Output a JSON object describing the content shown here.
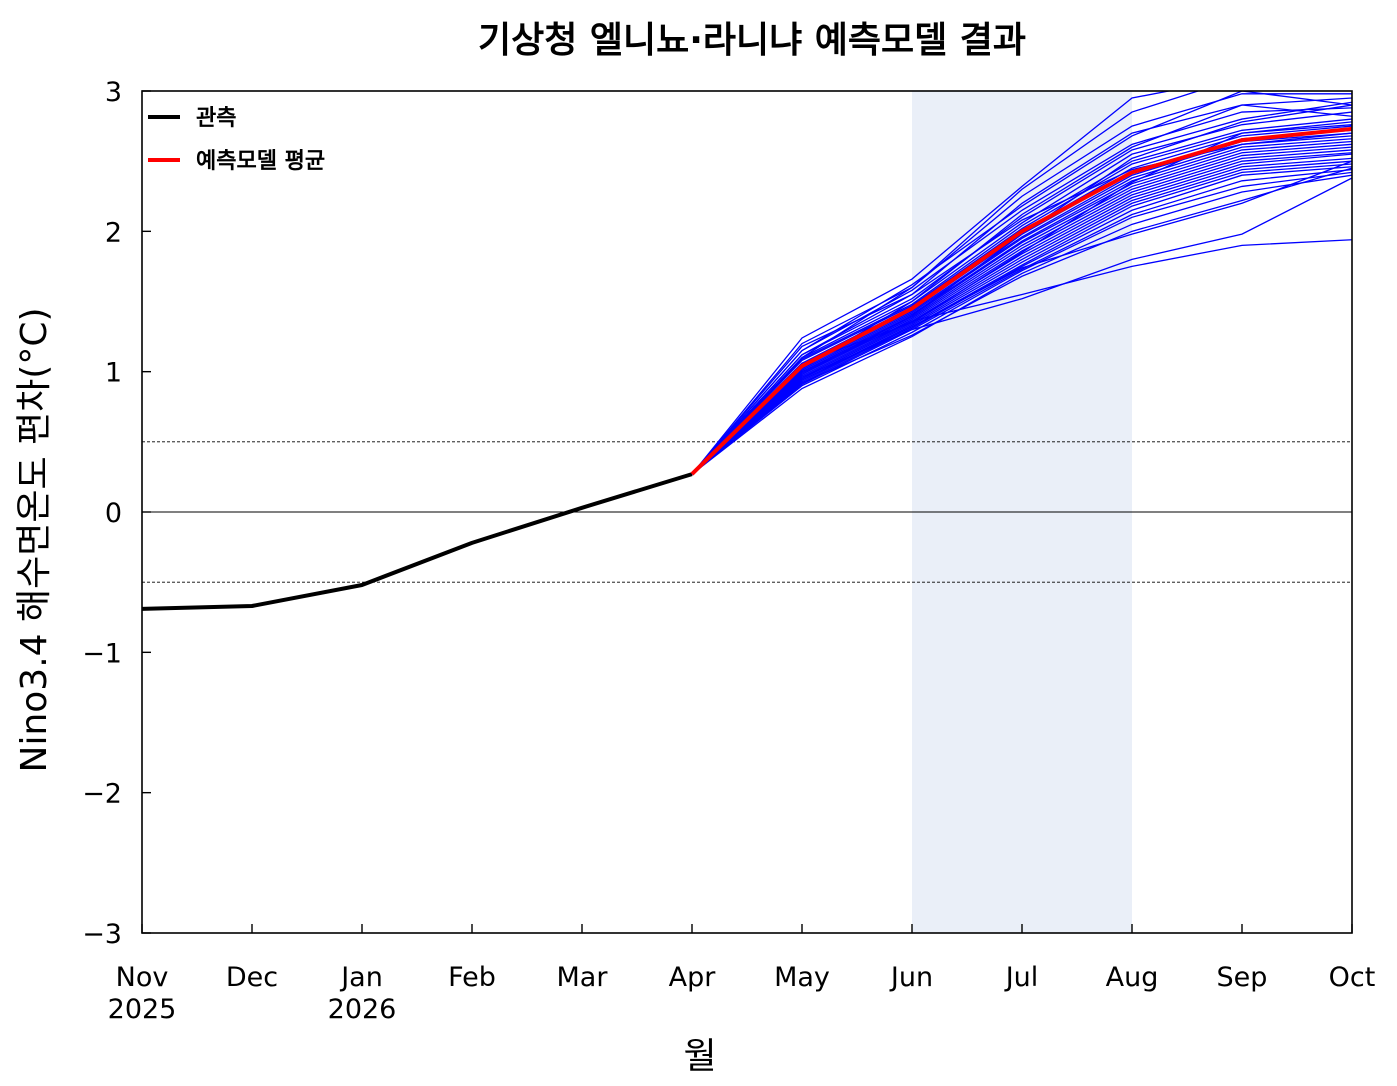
{
  "chart_data": {
    "type": "line",
    "title": "기상청 엘니뇨·라니냐 예측모델 결과",
    "xlabel": "월",
    "ylabel": "Nino3.4 해수면온도 편차(°C)",
    "ylim": [
      -3,
      3
    ],
    "yticks": [
      "3",
      "2",
      "1",
      "0",
      "−1",
      "−2",
      "−3"
    ],
    "categories": [
      {
        "month": "Nov",
        "year": "2025"
      },
      {
        "month": "Dec",
        "year": ""
      },
      {
        "month": "Jan",
        "year": "2026"
      },
      {
        "month": "Feb",
        "year": ""
      },
      {
        "month": "Mar",
        "year": ""
      },
      {
        "month": "Apr",
        "year": ""
      },
      {
        "month": "May",
        "year": ""
      },
      {
        "month": "Jun",
        "year": ""
      },
      {
        "month": "Jul",
        "year": ""
      },
      {
        "month": "Aug",
        "year": ""
      },
      {
        "month": "Sep",
        "year": ""
      },
      {
        "month": "Oct",
        "year": ""
      }
    ],
    "highlight_range": [
      "Jun",
      "Aug"
    ],
    "highlight_color": "#eaeff8",
    "reference_lines": [
      {
        "value": 0,
        "style": "solid"
      },
      {
        "value": 0.5,
        "style": "dotted"
      },
      {
        "value": -0.5,
        "style": "dotted"
      }
    ],
    "legend_placement": "top-left",
    "series": [
      {
        "name": "관측",
        "color": "#000000",
        "x": [
          "Nov",
          "Dec",
          "Jan",
          "Feb",
          "Mar",
          "Apr"
        ],
        "values": [
          -0.69,
          -0.67,
          -0.52,
          -0.22,
          0.03,
          0.27
        ]
      },
      {
        "name": "예측모델 평균",
        "color": "#ff0000",
        "x": [
          "Apr",
          "May",
          "Jun",
          "Jul",
          "Aug",
          "Sep",
          "Oct"
        ],
        "values": [
          0.27,
          1.04,
          1.45,
          2.0,
          2.42,
          2.65,
          2.73
        ]
      }
    ],
    "ensemble": {
      "color": "#0000ff",
      "x": [
        "Apr",
        "May",
        "Jun",
        "Jul",
        "Aug",
        "Sep",
        "Oct"
      ],
      "members": [
        [
          0.27,
          1.24,
          1.66,
          2.32,
          2.95,
          3.1,
          3.1
        ],
        [
          0.27,
          1.2,
          1.6,
          2.25,
          2.75,
          2.98,
          2.98
        ],
        [
          0.27,
          1.18,
          1.55,
          2.2,
          2.7,
          2.9,
          2.95
        ],
        [
          0.27,
          1.15,
          1.58,
          2.15,
          2.62,
          2.85,
          2.88
        ],
        [
          0.27,
          1.12,
          1.52,
          2.1,
          2.58,
          2.8,
          2.92
        ],
        [
          0.27,
          1.1,
          1.5,
          2.06,
          2.55,
          2.76,
          2.85
        ],
        [
          0.27,
          1.09,
          1.48,
          2.04,
          2.5,
          2.72,
          2.8
        ],
        [
          0.27,
          1.08,
          1.47,
          2.02,
          2.48,
          2.7,
          2.78
        ],
        [
          0.27,
          1.06,
          1.46,
          2.0,
          2.45,
          2.68,
          2.75
        ],
        [
          0.27,
          1.05,
          1.44,
          1.98,
          2.42,
          2.66,
          2.72
        ],
        [
          0.27,
          1.04,
          1.43,
          1.96,
          2.4,
          2.64,
          2.7
        ],
        [
          0.27,
          1.03,
          1.42,
          1.95,
          2.38,
          2.62,
          2.68
        ],
        [
          0.27,
          1.02,
          1.41,
          1.93,
          2.36,
          2.6,
          2.66
        ],
        [
          0.27,
          1.01,
          1.4,
          1.92,
          2.34,
          2.58,
          2.64
        ],
        [
          0.27,
          1.0,
          1.39,
          1.9,
          2.32,
          2.56,
          2.62
        ],
        [
          0.27,
          0.99,
          1.38,
          1.88,
          2.3,
          2.54,
          2.6
        ],
        [
          0.27,
          0.98,
          1.37,
          1.86,
          2.28,
          2.52,
          2.58
        ],
        [
          0.27,
          0.97,
          1.36,
          1.84,
          2.26,
          2.5,
          2.56
        ],
        [
          0.27,
          0.96,
          1.35,
          1.82,
          2.24,
          2.48,
          2.55
        ],
        [
          0.27,
          0.95,
          1.34,
          1.8,
          2.22,
          2.46,
          2.52
        ],
        [
          0.27,
          0.94,
          1.33,
          1.78,
          2.2,
          2.44,
          2.5
        ],
        [
          0.27,
          0.93,
          1.32,
          1.76,
          2.18,
          2.42,
          2.48
        ],
        [
          0.27,
          0.92,
          1.31,
          1.75,
          2.15,
          2.4,
          2.46
        ],
        [
          0.27,
          0.91,
          1.3,
          1.73,
          2.12,
          2.36,
          2.44
        ],
        [
          0.27,
          0.9,
          1.28,
          1.72,
          2.1,
          2.32,
          2.42
        ],
        [
          0.27,
          0.88,
          1.25,
          1.7,
          2.05,
          2.28,
          2.4
        ],
        [
          0.27,
          1.0,
          1.36,
          1.55,
          1.75,
          1.9,
          1.94
        ],
        [
          0.27,
          0.96,
          1.3,
          1.52,
          1.8,
          1.98,
          2.38
        ],
        [
          0.27,
          1.1,
          1.6,
          2.3,
          2.85,
          3.1,
          3.1
        ],
        [
          0.27,
          1.15,
          1.62,
          2.18,
          2.68,
          3.0,
          2.9
        ],
        [
          0.27,
          1.02,
          1.5,
          2.12,
          2.6,
          2.9,
          2.82
        ],
        [
          0.27,
          0.98,
          1.4,
          1.98,
          2.52,
          2.78,
          2.9
        ],
        [
          0.27,
          1.06,
          1.35,
          1.85,
          2.35,
          2.7,
          2.76
        ],
        [
          0.27,
          0.92,
          1.26,
          1.68,
          2.0,
          2.22,
          2.45
        ],
        [
          0.27,
          1.12,
          1.55,
          2.08,
          2.44,
          2.62,
          2.7
        ],
        [
          0.27,
          0.94,
          1.32,
          1.74,
          1.98,
          2.2,
          2.5
        ]
      ]
    }
  }
}
